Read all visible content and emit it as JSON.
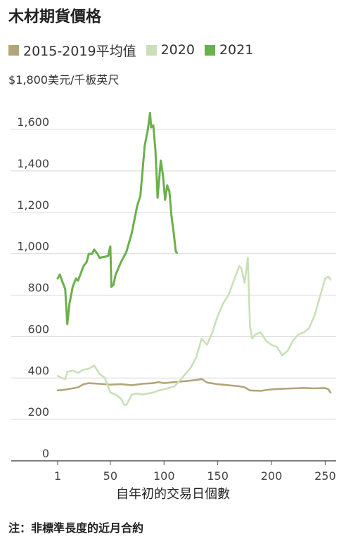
{
  "title": "木材期貨價格",
  "unit_label": "$1,800美元/千板英尺",
  "xlabel": "自年初的交易日個數",
  "note": "注：非標準長度的近月合約",
  "chart_data": {
    "type": "line",
    "title": "木材期貨價格",
    "xlabel": "自年初的交易日個數",
    "ylabel": "$1,800美元/千板英尺",
    "xlim": [
      1,
      255
    ],
    "ylim": [
      0,
      1800
    ],
    "x_ticks": [
      1,
      50,
      100,
      150,
      200,
      250
    ],
    "y_ticks": [
      {
        "value": 0,
        "label": "0"
      },
      {
        "value": 200,
        "label": "200"
      },
      {
        "value": 400,
        "label": "400"
      },
      {
        "value": 600,
        "label": "600"
      },
      {
        "value": 800,
        "label": "800"
      },
      {
        "value": 1000,
        "label": "1,000"
      },
      {
        "value": 1200,
        "label": "1,200"
      },
      {
        "value": 1400,
        "label": "1,400"
      },
      {
        "value": 1600,
        "label": "1,600"
      }
    ],
    "grid": "horizontal",
    "legend_position": "top",
    "series": [
      {
        "name": "2015-2019平均值",
        "color": "#b2a57a",
        "points": [
          [
            1,
            340
          ],
          [
            10,
            345
          ],
          [
            20,
            355
          ],
          [
            25,
            370
          ],
          [
            30,
            375
          ],
          [
            40,
            372
          ],
          [
            50,
            368
          ],
          [
            60,
            370
          ],
          [
            70,
            365
          ],
          [
            80,
            372
          ],
          [
            90,
            375
          ],
          [
            95,
            380
          ],
          [
            100,
            375
          ],
          [
            110,
            380
          ],
          [
            120,
            385
          ],
          [
            130,
            390
          ],
          [
            135,
            395
          ],
          [
            140,
            378
          ],
          [
            150,
            370
          ],
          [
            160,
            365
          ],
          [
            170,
            360
          ],
          [
            175,
            355
          ],
          [
            180,
            340
          ],
          [
            190,
            338
          ],
          [
            200,
            345
          ],
          [
            210,
            348
          ],
          [
            220,
            350
          ],
          [
            230,
            352
          ],
          [
            240,
            350
          ],
          [
            250,
            352
          ],
          [
            253,
            345
          ],
          [
            255,
            330
          ]
        ]
      },
      {
        "name": "2020",
        "color": "#c9e0b7",
        "points": [
          [
            1,
            410
          ],
          [
            5,
            400
          ],
          [
            8,
            395
          ],
          [
            10,
            430
          ],
          [
            15,
            435
          ],
          [
            20,
            425
          ],
          [
            25,
            440
          ],
          [
            30,
            445
          ],
          [
            35,
            460
          ],
          [
            40,
            420
          ],
          [
            45,
            400
          ],
          [
            50,
            330
          ],
          [
            55,
            320
          ],
          [
            60,
            300
          ],
          [
            63,
            270
          ],
          [
            65,
            270
          ],
          [
            70,
            320
          ],
          [
            75,
            325
          ],
          [
            80,
            320
          ],
          [
            85,
            325
          ],
          [
            90,
            330
          ],
          [
            95,
            340
          ],
          [
            100,
            345
          ],
          [
            110,
            360
          ],
          [
            120,
            420
          ],
          [
            125,
            450
          ],
          [
            130,
            500
          ],
          [
            135,
            590
          ],
          [
            140,
            560
          ],
          [
            145,
            620
          ],
          [
            150,
            700
          ],
          [
            155,
            760
          ],
          [
            160,
            800
          ],
          [
            165,
            870
          ],
          [
            170,
            940
          ],
          [
            172,
            930
          ],
          [
            175,
            860
          ],
          [
            178,
            980
          ],
          [
            180,
            650
          ],
          [
            182,
            590
          ],
          [
            185,
            610
          ],
          [
            190,
            620
          ],
          [
            195,
            580
          ],
          [
            200,
            560
          ],
          [
            205,
            550
          ],
          [
            210,
            510
          ],
          [
            215,
            530
          ],
          [
            220,
            580
          ],
          [
            225,
            610
          ],
          [
            230,
            620
          ],
          [
            235,
            640
          ],
          [
            240,
            700
          ],
          [
            245,
            790
          ],
          [
            250,
            880
          ],
          [
            253,
            890
          ],
          [
            255,
            875
          ]
        ]
      },
      {
        "name": "2021",
        "color": "#6ab04c",
        "points": [
          [
            1,
            880
          ],
          [
            3,
            900
          ],
          [
            5,
            870
          ],
          [
            8,
            830
          ],
          [
            10,
            660
          ],
          [
            12,
            760
          ],
          [
            15,
            840
          ],
          [
            18,
            880
          ],
          [
            20,
            870
          ],
          [
            25,
            940
          ],
          [
            28,
            960
          ],
          [
            30,
            1000
          ],
          [
            33,
            1000
          ],
          [
            35,
            1020
          ],
          [
            38,
            1000
          ],
          [
            40,
            980
          ],
          [
            45,
            985
          ],
          [
            48,
            990
          ],
          [
            50,
            1035
          ],
          [
            51,
            840
          ],
          [
            53,
            850
          ],
          [
            55,
            900
          ],
          [
            60,
            960
          ],
          [
            65,
            1010
          ],
          [
            70,
            1100
          ],
          [
            75,
            1230
          ],
          [
            78,
            1280
          ],
          [
            80,
            1400
          ],
          [
            82,
            1520
          ],
          [
            85,
            1600
          ],
          [
            87,
            1680
          ],
          [
            88,
            1610
          ],
          [
            90,
            1620
          ],
          [
            92,
            1500
          ],
          [
            94,
            1270
          ],
          [
            96,
            1390
          ],
          [
            97,
            1450
          ],
          [
            99,
            1380
          ],
          [
            101,
            1260
          ],
          [
            103,
            1330
          ],
          [
            105,
            1300
          ],
          [
            107,
            1180
          ],
          [
            109,
            1100
          ],
          [
            111,
            1010
          ],
          [
            112,
            1005
          ]
        ]
      }
    ]
  }
}
